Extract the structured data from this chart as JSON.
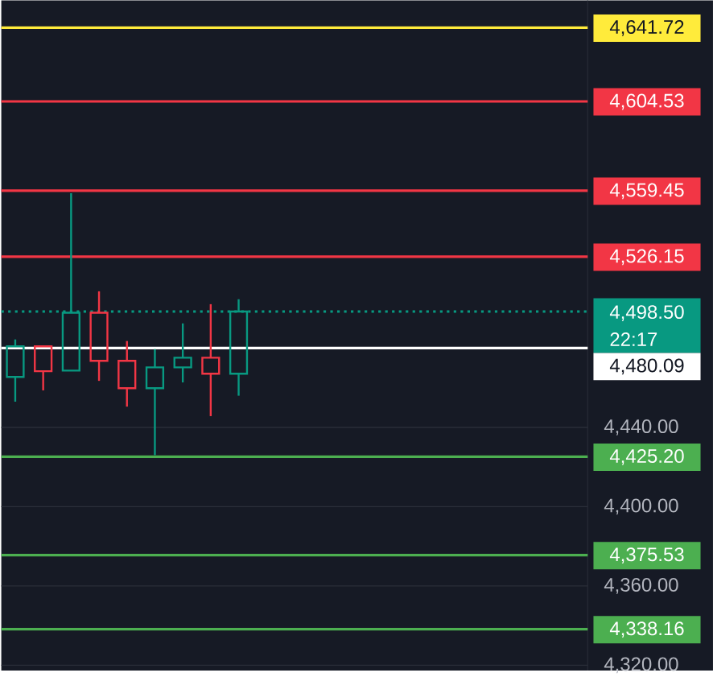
{
  "chart_data": {
    "type": "candlestick",
    "categories": [
      null,
      null,
      null,
      null,
      null,
      null,
      null,
      null,
      null,
      null,
      null,
      null,
      null,
      null,
      null,
      null,
      null,
      null,
      null,
      null,
      null
    ],
    "ohlc": [
      [
        4465.5,
        4484.4,
        4453.0,
        4480.9
      ],
      [
        4480.9,
        4480.9,
        4458.7,
        4468.4
      ],
      [
        4468.7,
        4558.2,
        4468.7,
        4497.9
      ],
      [
        4497.9,
        4508.7,
        4463.5,
        4473.6
      ],
      [
        4473.6,
        4483.6,
        4450.5,
        4459.8
      ],
      [
        4459.8,
        4479.5,
        4426.0,
        4470.3
      ],
      [
        4470.3,
        4492.5,
        4462.7,
        4475.2
      ],
      [
        4475.2,
        4502.2,
        4445.7,
        4467.1
      ],
      [
        4467.1,
        4504.7,
        4456.0,
        4498.5
      ],
      null,
      null,
      null,
      null,
      null,
      null,
      null,
      null,
      null,
      null,
      null,
      null
    ],
    "colors": [
      "#089981",
      "#f23645",
      "#089981",
      "#f23645",
      "#f23645",
      "#089981",
      "#089981",
      "#f23645",
      "#089981",
      null,
      null,
      null,
      null,
      null,
      null,
      null,
      null,
      null,
      null,
      null,
      null
    ],
    "ylim": [
      4317.3,
      4655.5
    ],
    "yticks": [
      {
        "value": 4320,
        "label": "4,320.00"
      },
      {
        "value": 4360,
        "label": "4,360.00"
      },
      {
        "value": 4400,
        "label": "4,400.00"
      },
      {
        "value": 4440,
        "label": "4,440.00"
      }
    ],
    "grid": "y",
    "ref_lines": [
      {
        "axis": "y",
        "value": 4641.72,
        "label": "4,641.72",
        "color": "#ffeb3b"
      },
      {
        "axis": "y",
        "value": 4604.53,
        "label": "4,604.53",
        "color": "#f23645"
      },
      {
        "axis": "y",
        "value": 4559.45,
        "label": "4,559.45",
        "color": "#f23645"
      },
      {
        "axis": "y",
        "value": 4526.15,
        "label": "4,526.15",
        "color": "#f23645"
      },
      {
        "axis": "y",
        "value": 4498.5,
        "label": "4,498.50",
        "color": "#089981",
        "line_style": "dotted"
      },
      {
        "axis": "y",
        "value": 4480.09,
        "label": "4,480.09",
        "color": "#ffffff"
      },
      {
        "axis": "y",
        "value": 4425.2,
        "label": "4,425.20",
        "color": "#4caf50"
      },
      {
        "axis": "y",
        "value": 4375.53,
        "label": "4,375.53",
        "color": "#4caf50"
      },
      {
        "axis": "y",
        "value": 4338.16,
        "label": "4,338.16",
        "color": "#4caf50"
      }
    ],
    "annotations": [
      "22:17"
    ]
  }
}
